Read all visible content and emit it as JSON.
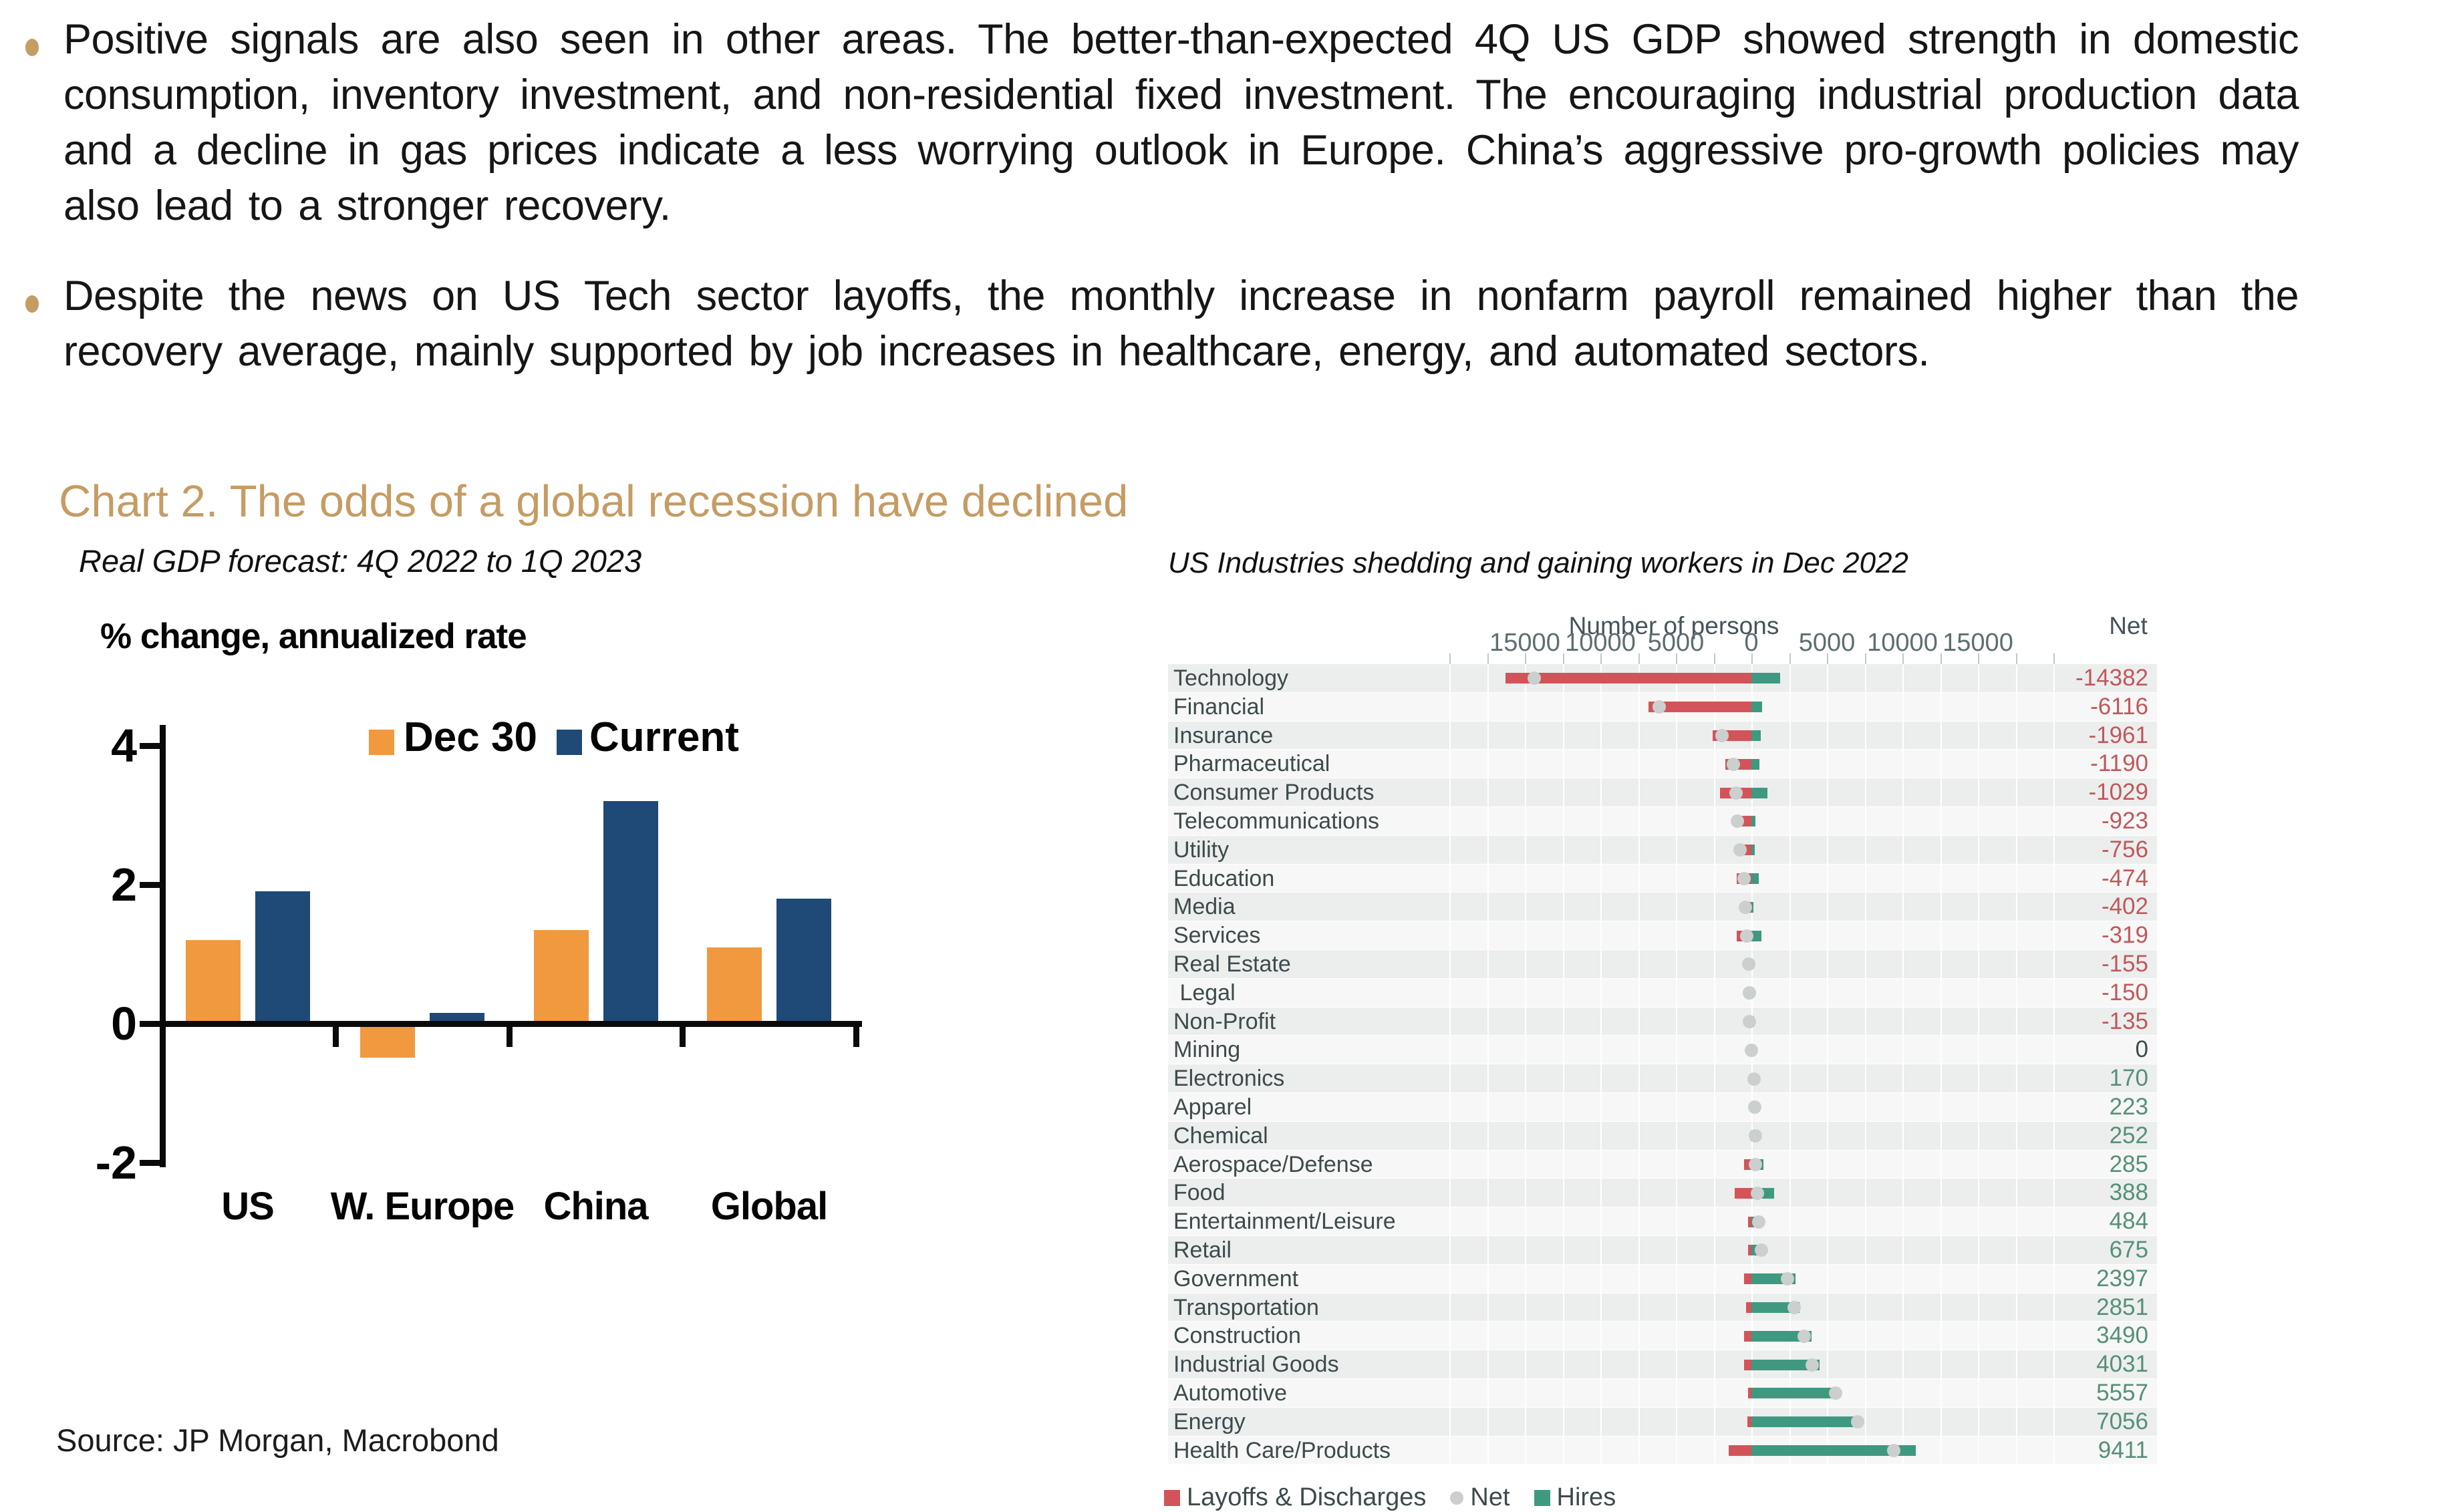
{
  "bullets": [
    "Positive signals are also seen in other areas. The better-than-expected 4Q US GDP showed strength in domestic consumption, inventory investment, and non-residential fixed investment. The encouraging industrial production data and a decline in gas prices indicate a less worrying outlook in Europe. China’s aggressive pro-growth policies may also lead to a stronger recovery.",
    "Despite the news on US Tech sector layoffs, the monthly increase in nonfarm payroll remained higher than the recovery average, mainly supported by job increases in healthcare, energy, and automated sectors."
  ],
  "section_title": "Chart 2. The odds of a global recession have declined",
  "source": "Source: JP Morgan, Macrobond",
  "colors": {
    "accent_gold": "#C59C64",
    "dec30_orange": "#F0993F",
    "current_navy": "#1F4976",
    "layoffs_red": "#D25459",
    "hires_green": "#3E9980",
    "net_dot_gray": "#CBCFCD",
    "net_negative_text": "#C0585B",
    "net_positive_text": "#559078",
    "net_zero_text": "#3E4A4C",
    "stripe_dark": "#ECEEED",
    "stripe_light": "#F6F7F6"
  },
  "chart_data": [
    {
      "type": "bar",
      "title": "Real GDP forecast: 4Q 2022 to 1Q 2023",
      "ylabel": "% change, annualized rate",
      "categories": [
        "US",
        "W. Europe",
        "China",
        "Global"
      ],
      "series": [
        {
          "name": "Dec 30",
          "color": "#F0993F",
          "values": [
            1.2,
            -0.45,
            1.35,
            1.1
          ]
        },
        {
          "name": "Current",
          "color": "#1F4976",
          "values": [
            1.9,
            0.15,
            3.2,
            1.8
          ]
        }
      ],
      "yticks": [
        4,
        2,
        0,
        -2
      ],
      "ylim": [
        -2,
        4
      ],
      "grid": false,
      "legend_position": "top-center"
    },
    {
      "type": "bar",
      "orientation": "horizontal-diverging",
      "title": "US Industries shedding and gaining workers in Dec 2022",
      "axis_title": "Number of persons",
      "net_column_header": "Net",
      "xlim": [
        -20000,
        20000
      ],
      "major_ticks": [
        -15000,
        -10000,
        -5000,
        0,
        5000,
        10000,
        15000
      ],
      "tick_labels": [
        "15000",
        "10000",
        "5000",
        "0",
        "5000",
        "10000",
        "15000"
      ],
      "minor_tick_step": 2500,
      "legend": [
        {
          "label": "Layoffs & Discharges",
          "color": "#D25459",
          "shape": "square"
        },
        {
          "label": "Net",
          "color": "#CBCFCD",
          "shape": "circle"
        },
        {
          "label": "Hires",
          "color": "#3E9980",
          "shape": "square"
        }
      ],
      "rows": [
        {
          "industry": "Technology",
          "net": -14382,
          "hires_est": 1900,
          "layoffs_est": 16282
        },
        {
          "industry": "Financial",
          "net": -6116,
          "hires_est": 700,
          "layoffs_est": 6816
        },
        {
          "industry": "Insurance",
          "net": -1961,
          "hires_est": 600,
          "layoffs_est": 2561
        },
        {
          "industry": "Pharmaceutical",
          "net": -1190,
          "hires_est": 550,
          "layoffs_est": 1740
        },
        {
          "industry": "Consumer Products",
          "net": -1029,
          "hires_est": 1050,
          "layoffs_est": 2079
        },
        {
          "industry": "Telecommunications",
          "net": -923,
          "hires_est": 280,
          "layoffs_est": 1203
        },
        {
          "industry": "Utility",
          "net": -756,
          "hires_est": 220,
          "layoffs_est": 976
        },
        {
          "industry": "Education",
          "net": -474,
          "hires_est": 480,
          "layoffs_est": 954
        },
        {
          "industry": "Media",
          "net": -402,
          "hires_est": 130,
          "layoffs_est": 532
        },
        {
          "industry": "Services",
          "net": -319,
          "hires_est": 650,
          "layoffs_est": 969
        },
        {
          "industry": "Real Estate",
          "net": -155,
          "hires_est": 110,
          "layoffs_est": 265
        },
        {
          "industry": " Legal",
          "net": -150,
          "hires_est": 100,
          "layoffs_est": 250
        },
        {
          "industry": "Non-Profit",
          "net": -135,
          "hires_est": 180,
          "layoffs_est": 315
        },
        {
          "industry": "Mining",
          "net": 0,
          "hires_est": 110,
          "layoffs_est": 110
        },
        {
          "industry": "Electronics",
          "net": 170,
          "hires_est": 240,
          "layoffs_est": 70
        },
        {
          "industry": "Apparel",
          "net": 223,
          "hires_est": 240,
          "layoffs_est": 17
        },
        {
          "industry": "Chemical",
          "net": 252,
          "hires_est": 290,
          "layoffs_est": 38
        },
        {
          "industry": "Aerospace/Defense",
          "net": 285,
          "hires_est": 780,
          "layoffs_est": 495
        },
        {
          "industry": "Food",
          "net": 388,
          "hires_est": 1500,
          "layoffs_est": 1112
        },
        {
          "industry": "Entertainment/Leisure",
          "net": 484,
          "hires_est": 690,
          "layoffs_est": 206
        },
        {
          "industry": "Retail",
          "net": 675,
          "hires_est": 880,
          "layoffs_est": 205
        },
        {
          "industry": "Government",
          "net": 2397,
          "hires_est": 2900,
          "layoffs_est": 503
        },
        {
          "industry": "Transportation",
          "net": 2851,
          "hires_est": 3200,
          "layoffs_est": 349
        },
        {
          "industry": "Construction",
          "net": 3490,
          "hires_est": 3990,
          "layoffs_est": 500
        },
        {
          "industry": "Industrial Goods",
          "net": 4031,
          "hires_est": 4500,
          "layoffs_est": 469
        },
        {
          "industry": "Automotive",
          "net": 5557,
          "hires_est": 5800,
          "layoffs_est": 243
        },
        {
          "industry": "Energy",
          "net": 7056,
          "hires_est": 7300,
          "layoffs_est": 244
        },
        {
          "industry": "Health Care/Products",
          "net": 9411,
          "hires_est": 10900,
          "layoffs_est": 1489
        }
      ]
    }
  ]
}
